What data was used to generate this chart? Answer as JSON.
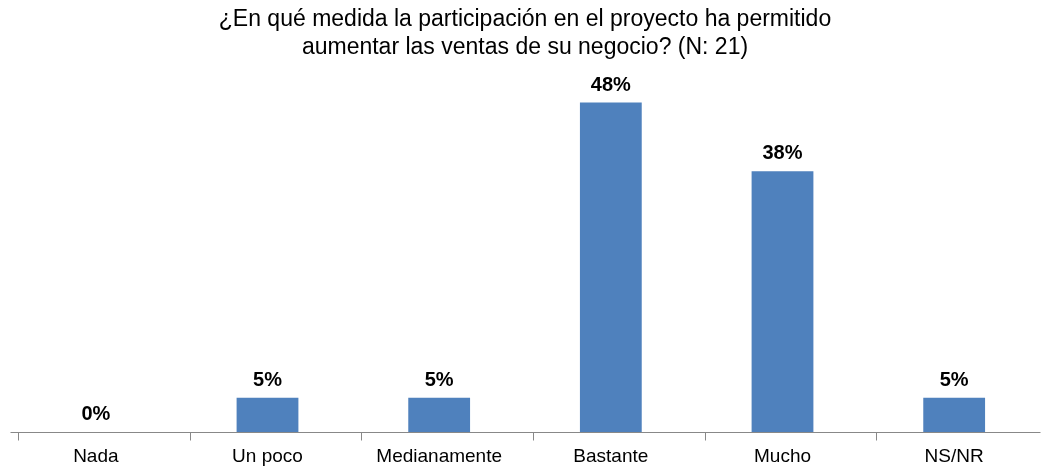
{
  "chart_data": {
    "type": "bar",
    "title": "¿En qué medida la participación en el proyecto ha permitido aumentar las ventas de su negocio? (N: 21)",
    "categories": [
      "Nada",
      "Un poco",
      "Medianamente",
      "Bastante",
      "Mucho",
      "NS/NR"
    ],
    "values": [
      0,
      5,
      5,
      48,
      38,
      5
    ],
    "value_labels": [
      "0%",
      "5%",
      "5%",
      "48%",
      "38%",
      "5%"
    ],
    "color": "#4f81bd"
  }
}
